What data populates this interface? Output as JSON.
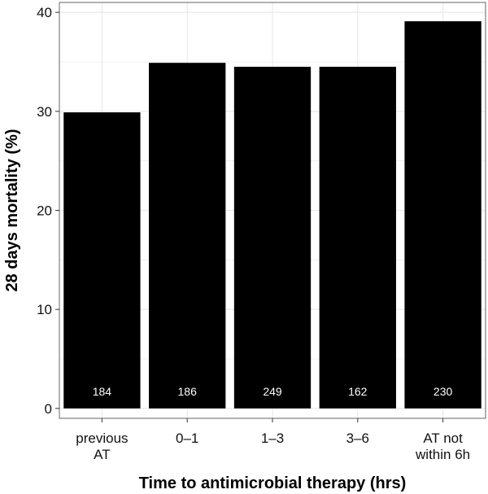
{
  "chart_data": {
    "type": "bar",
    "categories": [
      [
        "previous",
        "AT"
      ],
      [
        "0–1"
      ],
      [
        "1–3"
      ],
      [
        "3–6"
      ],
      [
        "AT not",
        "within 6h"
      ]
    ],
    "values": [
      29.9,
      34.9,
      34.5,
      34.5,
      39.1
    ],
    "bar_labels": [
      "184",
      "186",
      "249",
      "162",
      "230"
    ],
    "xlabel": "Time to antimicrobial therapy (hrs)",
    "ylabel": "28 days mortality (%)",
    "ylim": [
      -1,
      41
    ],
    "yticks": [
      0,
      10,
      20,
      30,
      40
    ],
    "grid": true,
    "colors": {
      "bar": "#000000",
      "grid": "#ebebeb",
      "panel_border": "#7f7f7f",
      "bar_label": "#ffffff"
    }
  }
}
